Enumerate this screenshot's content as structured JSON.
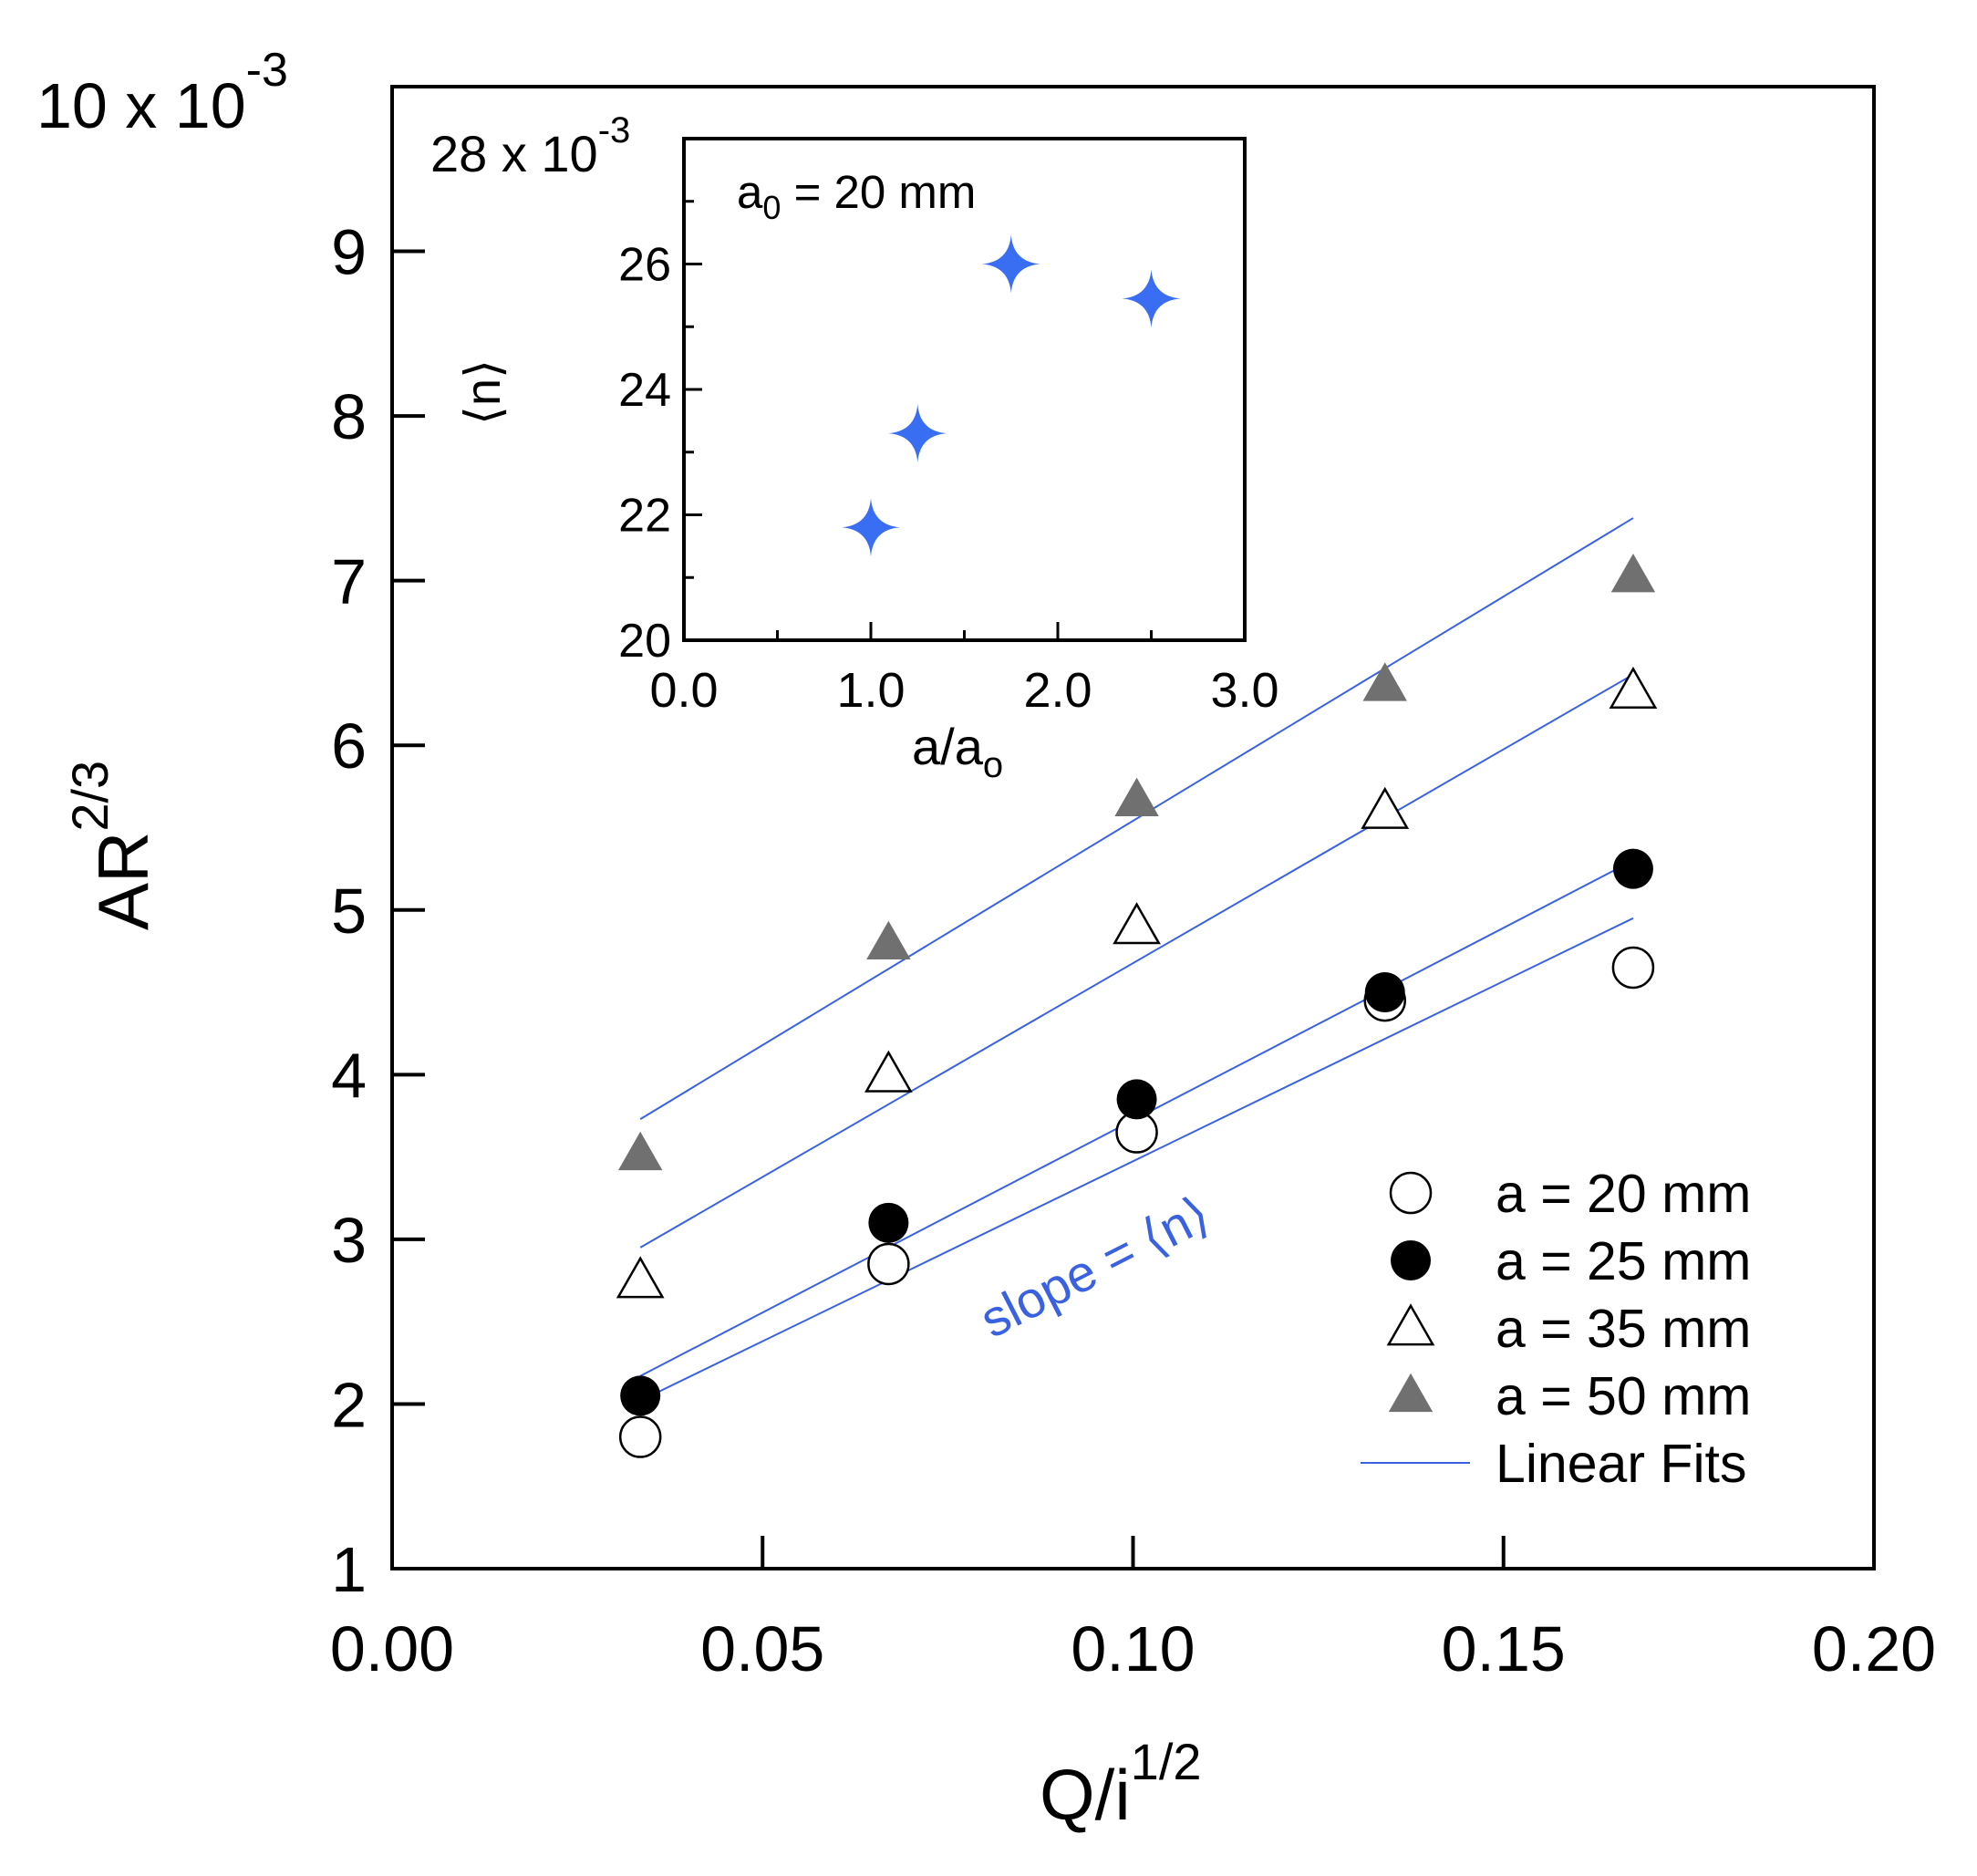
{
  "chart_data": [
    {
      "type": "scatter",
      "xlabel": "Q/i",
      "xlabel_superscript": "1/2",
      "ylabel": "AR",
      "ylabel_superscript": "2/3",
      "y_multiplier_label": "10 x 10",
      "y_multiplier_exponent": "-3",
      "xlim": [
        0.0,
        0.2
      ],
      "ylim": [
        1,
        10
      ],
      "y_scale_note": "values shown in units of 10^-3",
      "x_ticks": [
        0.0,
        0.05,
        0.1,
        0.15,
        0.2
      ],
      "x_tick_labels": [
        "0.00",
        "0.05",
        "0.10",
        "0.15",
        "0.20"
      ],
      "y_ticks": [
        1,
        2,
        3,
        4,
        5,
        6,
        7,
        8,
        9
      ],
      "y_tick_labels": [
        "1",
        "2",
        "3",
        "4",
        "5",
        "6",
        "7",
        "8",
        "9"
      ],
      "grid": false,
      "legend_position": "bottom-right",
      "x": [
        0.0335,
        0.067,
        0.1005,
        0.134,
        0.1675
      ],
      "series": [
        {
          "name": "a = 20 mm",
          "marker": "open-circle",
          "values": [
            1.8,
            2.85,
            3.65,
            4.45,
            4.65
          ],
          "fit": [
            2.02,
            4.95
          ]
        },
        {
          "name": "a = 25 mm",
          "marker": "filled-circle",
          "values": [
            2.05,
            3.1,
            3.85,
            4.5,
            5.25
          ],
          "fit": [
            2.17,
            5.3
          ]
        },
        {
          "name": "a = 35 mm",
          "marker": "open-triangle",
          "values": [
            2.75,
            4.0,
            4.9,
            5.6,
            6.33
          ],
          "fit": [
            2.95,
            6.43
          ]
        },
        {
          "name": "a = 50 mm",
          "marker": "filled-triangle",
          "values": [
            3.52,
            4.8,
            5.67,
            6.37,
            7.03
          ],
          "fit": [
            3.73,
            7.38
          ]
        }
      ],
      "fit_legend_label": "Linear Fits",
      "annotation": "slope = ⟨n⟩",
      "colors": {
        "fit_line": "#3a62e0",
        "annotation": "#3a62e0",
        "filled_triangle": "#707070",
        "filled_circle": "#000000"
      }
    },
    {
      "type": "scatter",
      "xlabel": "a/a",
      "xlabel_subscript": "o",
      "ylabel": "⟨n⟩",
      "annotation": "a",
      "annotation_subscript": "0",
      "annotation_tail": " = 20 mm",
      "y_multiplier_label": "28 x 10",
      "y_multiplier_exponent": "-3",
      "xlim": [
        0.0,
        3.0
      ],
      "ylim": [
        20,
        28
      ],
      "x_ticks": [
        0.0,
        1.0,
        2.0,
        3.0
      ],
      "x_tick_labels": [
        "0.0",
        "1.0",
        "2.0",
        "3.0"
      ],
      "x_minor_ticks": [
        0.5,
        1.5,
        2.5
      ],
      "y_ticks": [
        20,
        22,
        24,
        26
      ],
      "y_tick_labels": [
        "20",
        "22",
        "24",
        "26"
      ],
      "y_minor_ticks": [
        21,
        23,
        25,
        27
      ],
      "grid": false,
      "x": [
        1.0,
        1.25,
        1.75,
        2.5
      ],
      "values": [
        21.8,
        23.3,
        26.0,
        25.45
      ],
      "marker": "four-point-star",
      "colors": {
        "marker": "#3a6ef2"
      }
    }
  ]
}
